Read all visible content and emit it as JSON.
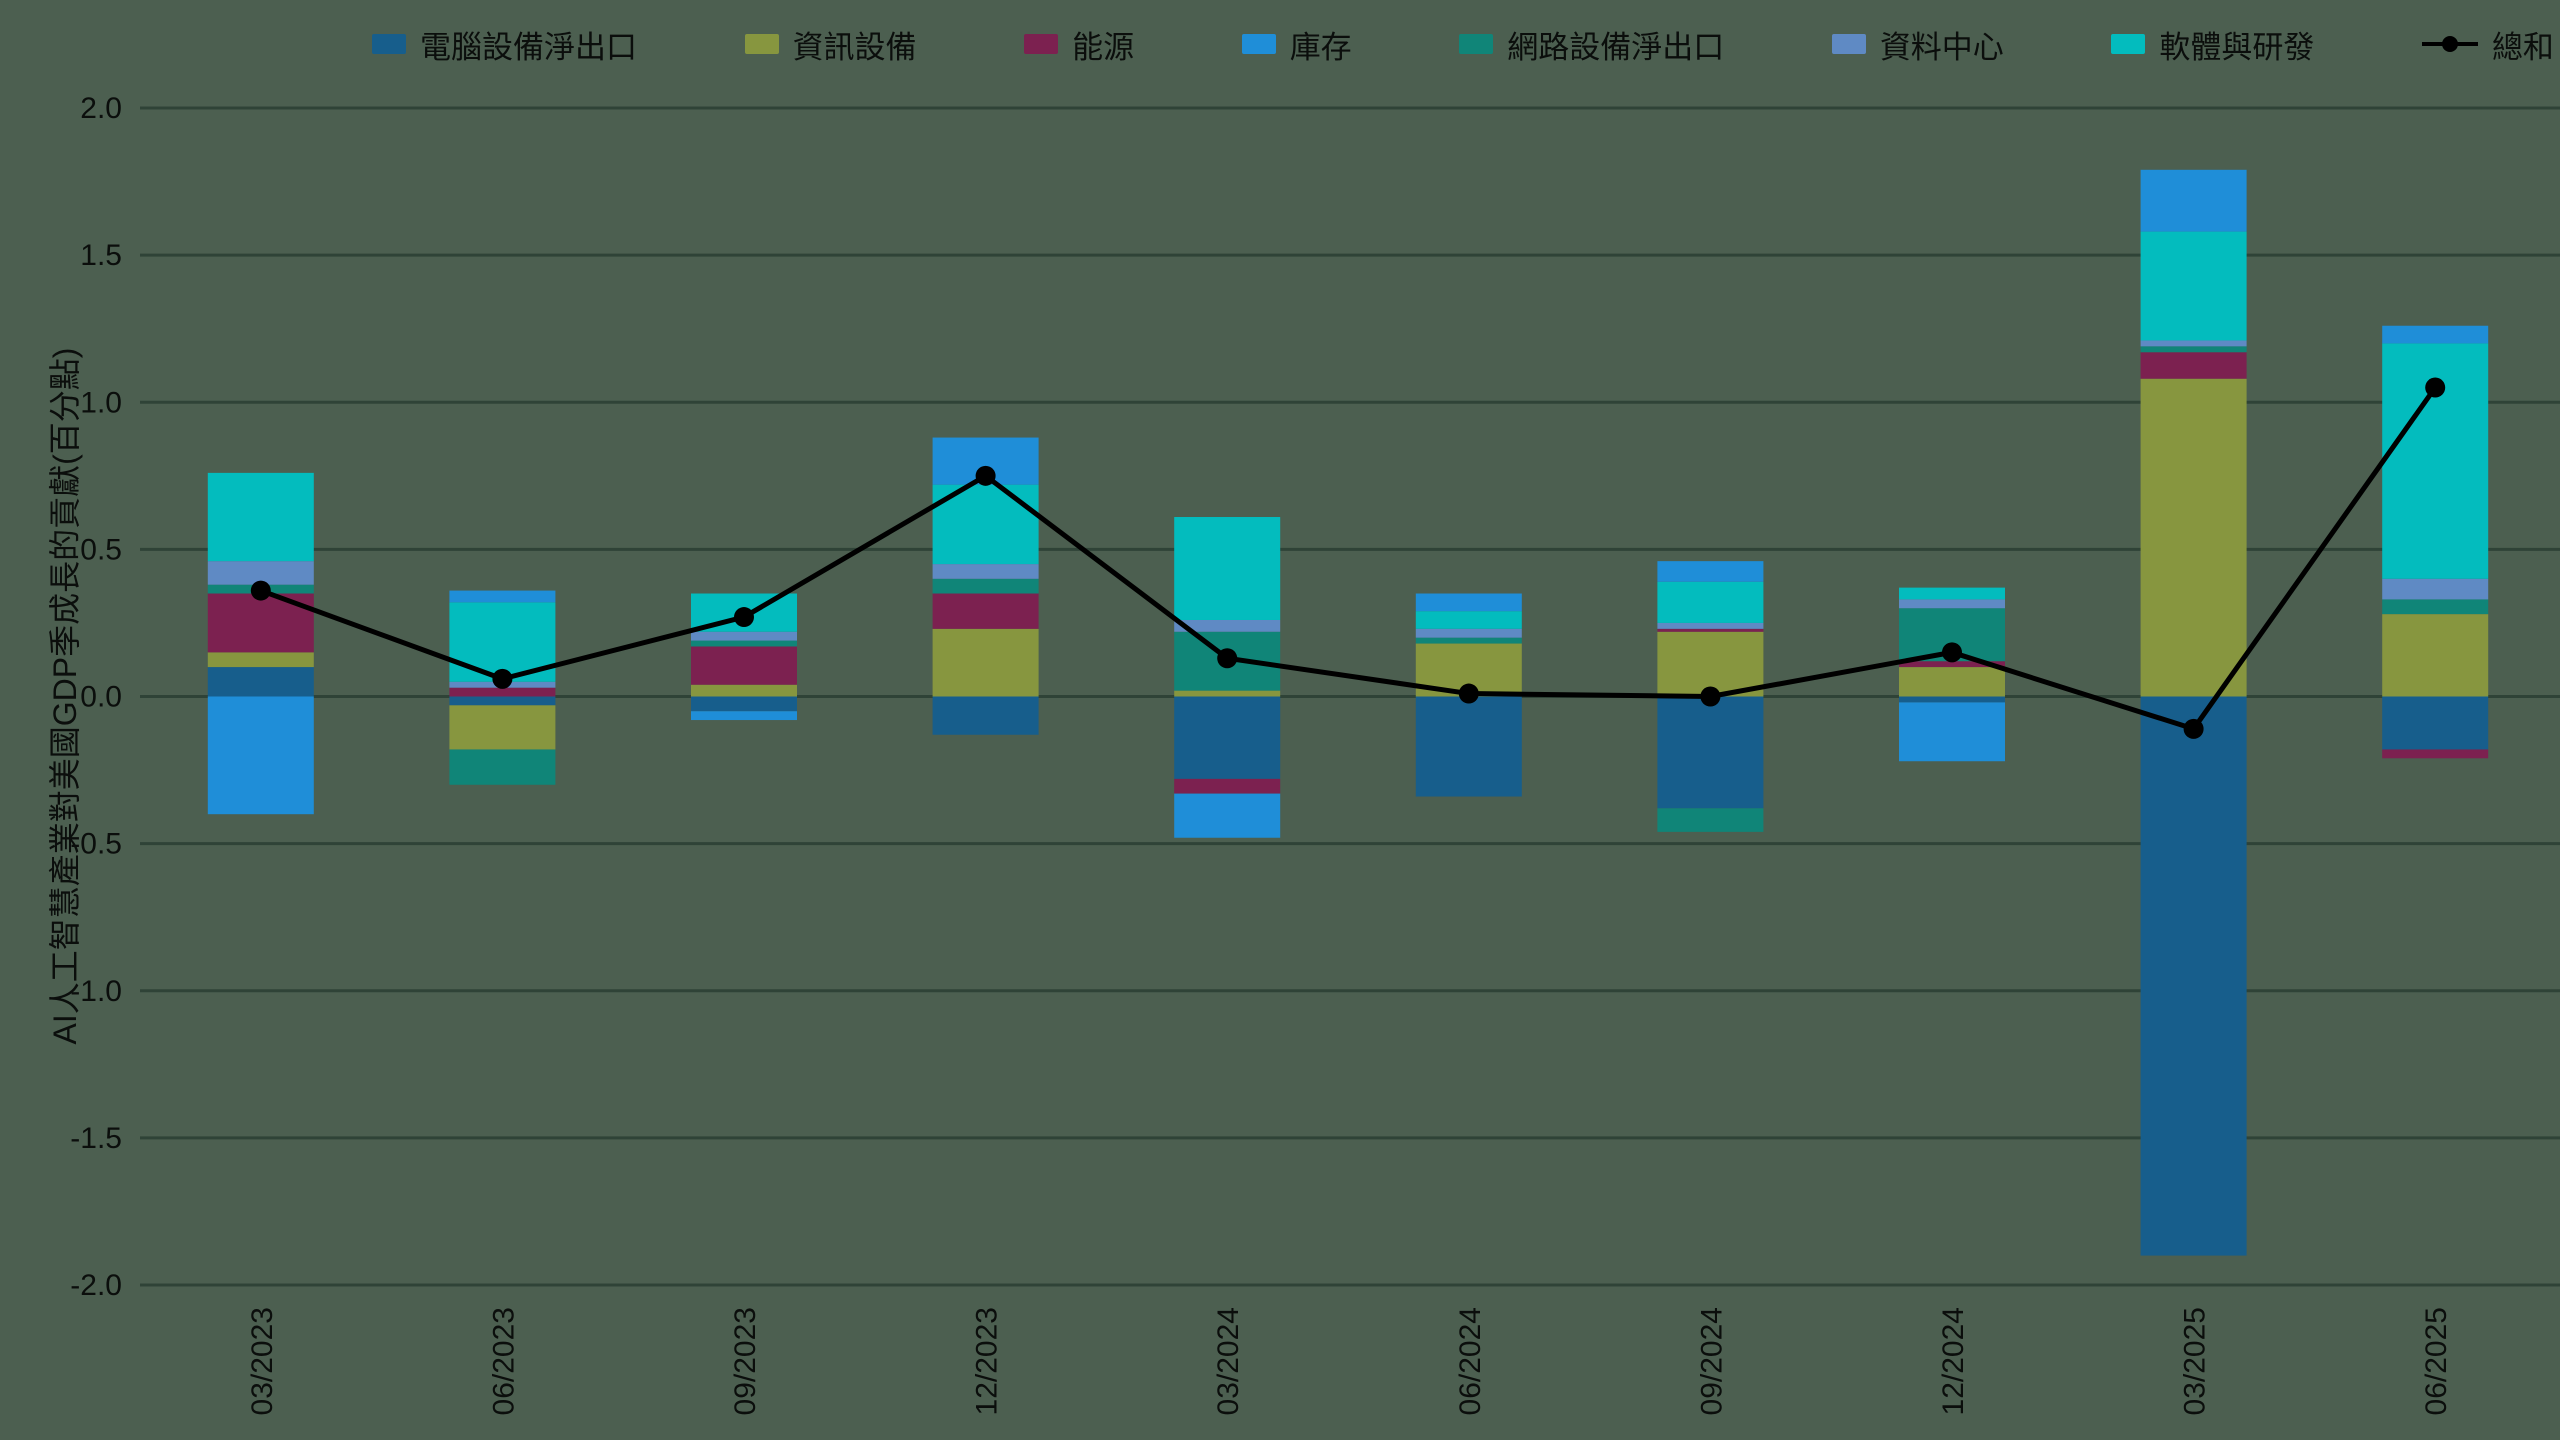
{
  "page": {
    "background": "#4c5f50",
    "grid_color": "#2f4337",
    "text_color": "#0b0e0c"
  },
  "chart_data": {
    "type": "bar",
    "subtype": "stacked-bar-with-total-line",
    "title": "",
    "ylabel": "AI人工智慧產業對美國GDP季成長的貢獻(百分點)",
    "xlabel": "",
    "ylim": [
      -2.0,
      2.0
    ],
    "yticks": [
      2.0,
      1.5,
      1.0,
      0.5,
      0.0,
      -0.5,
      -1.0,
      -1.5,
      -2.0
    ],
    "grid": true,
    "legend_position": "top",
    "categories": [
      "03/2023",
      "06/2023",
      "09/2023",
      "12/2023",
      "03/2024",
      "06/2024",
      "09/2024",
      "12/2024",
      "03/2025",
      "06/2025"
    ],
    "series": [
      {
        "key": "computer-net-exports",
        "name": "電腦設備淨出口",
        "color": "#175e8c",
        "values": [
          0.1,
          -0.03,
          -0.05,
          -0.13,
          -0.28,
          -0.34,
          -0.38,
          -0.02,
          -1.9,
          -0.18
        ]
      },
      {
        "key": "info-equipment",
        "name": "資訊設備",
        "color": "#87963f",
        "values": [
          0.05,
          -0.15,
          0.04,
          0.23,
          0.02,
          0.18,
          0.22,
          0.1,
          1.08,
          0.28
        ]
      },
      {
        "key": "energy",
        "name": "能源",
        "color": "#7c2150",
        "values": [
          0.2,
          0.03,
          0.13,
          0.12,
          -0.05,
          0.0,
          0.01,
          0.02,
          0.09,
          -0.03
        ]
      },
      {
        "key": "inventory",
        "name": "庫存",
        "color": "#1f8ed8",
        "values": [
          -0.4,
          0.04,
          -0.03,
          0.16,
          -0.15,
          0.06,
          0.07,
          -0.2,
          0.21,
          0.06
        ]
      },
      {
        "key": "network-net-exports",
        "name": "網路設備淨出口",
        "color": "#108578",
        "values": [
          0.03,
          -0.12,
          0.02,
          0.05,
          0.2,
          0.02,
          -0.08,
          0.18,
          0.02,
          0.05
        ]
      },
      {
        "key": "data-center",
        "name": "資料中心",
        "color": "#5f8ac4",
        "values": [
          0.08,
          0.02,
          0.03,
          0.05,
          0.04,
          0.03,
          0.02,
          0.03,
          0.02,
          0.07
        ]
      },
      {
        "key": "software-rd",
        "name": "軟體與研發",
        "color": "#03bcbe",
        "values": [
          0.3,
          0.27,
          0.13,
          0.27,
          0.35,
          0.06,
          0.14,
          0.04,
          0.37,
          0.8
        ]
      }
    ],
    "stack_order": [
      "computer-net-exports",
      "info-equipment",
      "energy",
      "network-net-exports",
      "data-center",
      "software-rd",
      "inventory"
    ],
    "line_series": {
      "key": "total",
      "name": "總和",
      "color": "#000000",
      "values": [
        0.36,
        0.06,
        0.27,
        0.75,
        0.13,
        0.01,
        0.0,
        0.15,
        -0.11,
        1.05
      ]
    }
  }
}
